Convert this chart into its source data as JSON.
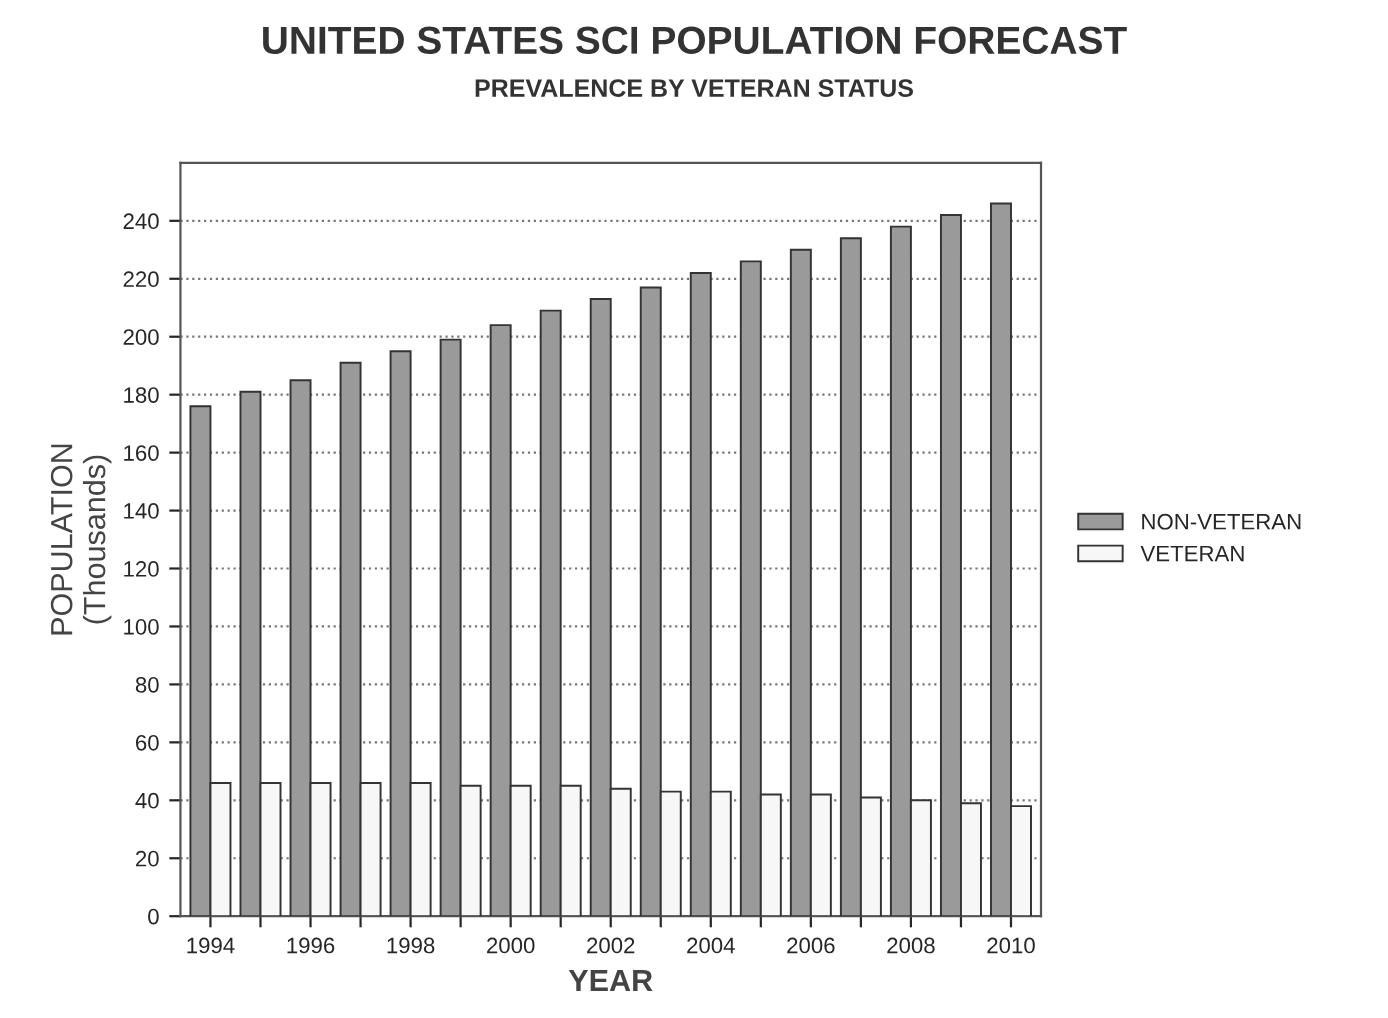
{
  "chart_data": {
    "type": "bar",
    "title": "UNITED STATES SCI POPULATION FORECAST",
    "subtitle": "PREVALENCE BY VETERAN STATUS",
    "xlabel": "YEAR",
    "ylabel": "POPULATION\n(Thousands)",
    "categories": [
      "1994",
      null,
      "1996",
      null,
      "1998",
      null,
      "2000",
      null,
      "2002",
      null,
      "2004",
      null,
      "2006",
      null,
      "2008",
      null,
      "2010"
    ],
    "series": [
      {
        "name": "NON-VETERAN",
        "color": "#9a9a9a",
        "values": [
          176,
          181,
          185,
          191,
          195,
          199,
          204,
          209,
          213,
          217,
          222,
          226,
          230,
          234,
          238,
          242,
          246
        ]
      },
      {
        "name": "VETERAN",
        "color": "#f7f7f7",
        "values": [
          46,
          46,
          46,
          46,
          46,
          45,
          45,
          45,
          44,
          43,
          43,
          42,
          42,
          41,
          40,
          39,
          38
        ]
      }
    ],
    "ylim": [
      0,
      260
    ],
    "yticks": [
      0,
      20,
      40,
      60,
      80,
      100,
      120,
      140,
      160,
      180,
      200,
      220,
      240
    ],
    "grid": "y",
    "legend": "right"
  }
}
